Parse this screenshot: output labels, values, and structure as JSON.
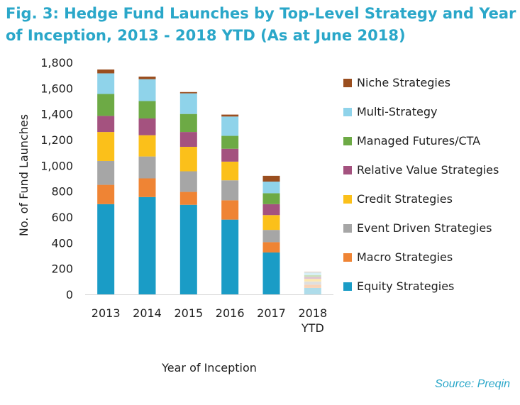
{
  "title": "Fig. 3: Hedge Fund Launches by Top-Level Strategy and Year of Inception, 2013 - 2018 YTD (As at June 2018)",
  "source": "Source: Preqin",
  "chart_data": {
    "type": "bar",
    "stacked": true,
    "categories": [
      "2013",
      "2014",
      "2015",
      "2016",
      "2017",
      "2018 YTD"
    ],
    "xlabel": "Year of Inception",
    "ylabel": "No. of Fund Launches",
    "ylim": [
      0,
      1800
    ],
    "yticks": [
      0,
      200,
      400,
      600,
      800,
      1000,
      1200,
      1400,
      1600,
      1800
    ],
    "ytick_labels": [
      "0",
      "200",
      "400",
      "600",
      "800",
      "1,000",
      "1,200",
      "1,400",
      "1,600",
      "1,800"
    ],
    "grid": false,
    "legend_position": "right",
    "faded_categories": [
      "2018 YTD"
    ],
    "series": [
      {
        "name": "Equity Strategies",
        "color": "#1a9cc6",
        "values": [
          700,
          755,
          695,
          580,
          325,
          50
        ]
      },
      {
        "name": "Macro Strategies",
        "color": "#ef8434",
        "values": [
          150,
          145,
          100,
          150,
          80,
          25
        ]
      },
      {
        "name": "Event Driven Strategies",
        "color": "#a6a6a6",
        "values": [
          185,
          170,
          160,
          155,
          95,
          25
        ]
      },
      {
        "name": "Credit Strategies",
        "color": "#fbc01a",
        "values": [
          225,
          165,
          190,
          145,
          115,
          20
        ]
      },
      {
        "name": "Relative Value Strategies",
        "color": "#a4527f",
        "values": [
          125,
          130,
          115,
          100,
          85,
          15
        ]
      },
      {
        "name": "Managed Futures/CTA",
        "color": "#6daa45",
        "values": [
          170,
          135,
          140,
          100,
          85,
          15
        ]
      },
      {
        "name": "Multi-Strategy",
        "color": "#8fd3ea",
        "values": [
          160,
          170,
          160,
          150,
          90,
          20
        ]
      },
      {
        "name": "Niche Strategies",
        "color": "#9a4e1f",
        "values": [
          30,
          20,
          10,
          15,
          45,
          5
        ]
      }
    ]
  }
}
